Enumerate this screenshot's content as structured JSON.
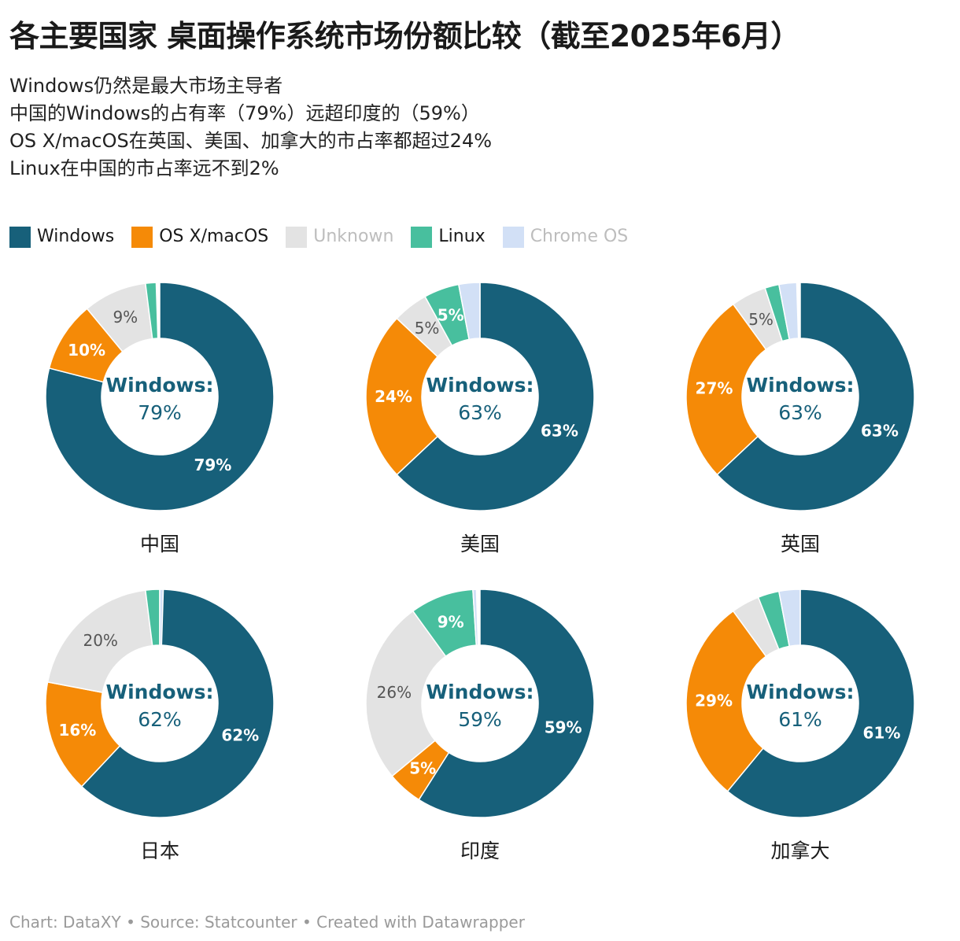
{
  "title": "各主要国家 桌面操作系统市场份额比较（截至2025年6月）",
  "subtitle_lines": [
    "Windows仍然是最大市场主导者",
    "中国的Windows的占有率（79%）远超印度的（59%）",
    "OS X/macOS在英国、美国、加拿大的市占率都超过24%",
    "Linux在中国的市占率远不到2%"
  ],
  "legend": [
    {
      "label": "Windows",
      "color": "#17607a",
      "text_color": "#1a1a1a"
    },
    {
      "label": "OS X/macOS",
      "color": "#f58a07",
      "text_color": "#1a1a1a"
    },
    {
      "label": "Unknown",
      "color": "#e3e3e3",
      "text_color": "#bdbdbd"
    },
    {
      "label": "Linux",
      "color": "#48bf9e",
      "text_color": "#1a1a1a"
    },
    {
      "label": "Chrome OS",
      "color": "#d2e0f6",
      "text_color": "#bdbdbd"
    }
  ],
  "center_label": "Windows:",
  "chart_data": [
    {
      "type": "pie",
      "title": "中国",
      "categories": [
        "Windows",
        "OS X/macOS",
        "Unknown",
        "Linux",
        "Chrome OS"
      ],
      "values": [
        79,
        10,
        9,
        1.5,
        0
      ],
      "labels": [
        "79%",
        "10%",
        "9%",
        "",
        ""
      ],
      "center_value": "79%"
    },
    {
      "type": "pie",
      "title": "美国",
      "categories": [
        "Windows",
        "OS X/macOS",
        "Unknown",
        "Linux",
        "Chrome OS"
      ],
      "values": [
        63,
        24,
        5,
        5,
        3
      ],
      "labels": [
        "63%",
        "24%",
        "5%",
        "5%",
        ""
      ],
      "center_value": "63%"
    },
    {
      "type": "pie",
      "title": "英国",
      "categories": [
        "Windows",
        "OS X/macOS",
        "Unknown",
        "Linux",
        "Chrome OS"
      ],
      "values": [
        63,
        27,
        5,
        2,
        2.5
      ],
      "labels": [
        "63%",
        "27%",
        "5%",
        "",
        ""
      ],
      "center_value": "63%"
    },
    {
      "type": "pie",
      "title": "日本",
      "categories": [
        "Windows",
        "OS X/macOS",
        "Unknown",
        "Linux",
        "Chrome OS"
      ],
      "values": [
        62,
        16,
        20,
        2,
        0.5
      ],
      "labels": [
        "62%",
        "16%",
        "20%",
        "",
        ""
      ],
      "center_value": "62%"
    },
    {
      "type": "pie",
      "title": "印度",
      "categories": [
        "Windows",
        "OS X/macOS",
        "Unknown",
        "Linux",
        "Chrome OS"
      ],
      "values": [
        59,
        5,
        26,
        9,
        0.5
      ],
      "labels": [
        "59%",
        "5%",
        "26%",
        "9%",
        ""
      ],
      "center_value": "59%"
    },
    {
      "type": "pie",
      "title": "加拿大",
      "categories": [
        "Windows",
        "OS X/macOS",
        "Unknown",
        "Linux",
        "Chrome OS"
      ],
      "values": [
        61,
        29,
        4,
        3,
        3
      ],
      "labels": [
        "61%",
        "29%",
        "",
        "",
        ""
      ],
      "center_value": "61%"
    }
  ],
  "label_colors": {
    "Windows": "#ffffff",
    "OS X/macOS": "#ffffff",
    "Unknown": "#555555",
    "Linux": "#ffffff",
    "Chrome OS": "#333333"
  },
  "center_color": "#17607a",
  "footer": "Chart: DataXY • Source: Statcounter • Created with Datawrapper"
}
